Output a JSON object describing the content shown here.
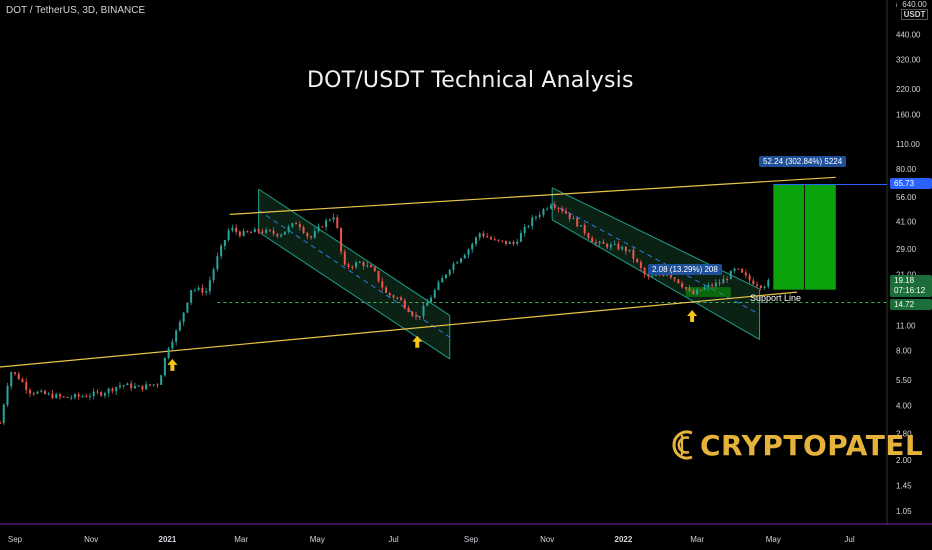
{
  "header": {
    "symbol_line": "DOT / TetherUS, 3D, BINANCE",
    "unit_top": "640.00",
    "unit": "USDT"
  },
  "title": "DOT/USDT Technical Analysis",
  "brand": {
    "name": "CRYPTOPATEL",
    "color": "#e6b33a"
  },
  "annotations": {
    "target_label": "52.24 (302.84%) 5224",
    "range_label": "2.08 (13.29%) 208",
    "support_label": "Support Line"
  },
  "price_labels": {
    "current": "19.18",
    "countdown": "07:16:12",
    "target": "65.73",
    "support": "14.72"
  },
  "colors": {
    "up": "#26a69a",
    "down": "#ef5350",
    "trend": "#e8c547",
    "channel": "#1f9e8c",
    "target": "#0ba30b",
    "arrow": "#f5c518",
    "label_blue": "#1e4f99",
    "support_dash": "#35b35a"
  },
  "chart_data": {
    "type": "candlestick",
    "symbol": "DOT/USDT",
    "timeframe": "3D",
    "exchange": "BINANCE",
    "y_scale": "log",
    "y_ticks": [
      640,
      440,
      320,
      220,
      160,
      110,
      80,
      56,
      41,
      29,
      21,
      14.72,
      11,
      8,
      5.5,
      4,
      2.8,
      2,
      1.45,
      1.05
    ],
    "y_tick_labels": [
      "640.00",
      "440.00",
      "320.00",
      "220.00",
      "160.00",
      "110.00",
      "80.00",
      "56.00",
      "41.00",
      "29.00",
      "21.00",
      "14.72",
      "11.00",
      "8.00",
      "5.50",
      "4.00",
      "2.80",
      "2.00",
      "1.45",
      "1.05"
    ],
    "x_ticks": [
      "Sep",
      "Nov",
      "2021",
      "Mar",
      "May",
      "Jul",
      "Sep",
      "Nov",
      "2022",
      "Mar",
      "May",
      "Jul"
    ],
    "x_range": [
      "2020-08-20",
      "2022-07-31"
    ],
    "price_path": [
      [
        "2020-08-20",
        3.2
      ],
      [
        "2020-08-28",
        6.2
      ],
      [
        "2020-09-05",
        5.6
      ],
      [
        "2020-09-12",
        4.8
      ],
      [
        "2020-09-25",
        4.6
      ],
      [
        "2020-10-10",
        4.4
      ],
      [
        "2020-10-25",
        4.5
      ],
      [
        "2020-11-10",
        4.7
      ],
      [
        "2020-11-25",
        5.2
      ],
      [
        "2020-12-10",
        5.0
      ],
      [
        "2020-12-25",
        5.3
      ],
      [
        "2021-01-01",
        8.2
      ],
      [
        "2021-01-10",
        10.8
      ],
      [
        "2021-01-20",
        17.5
      ],
      [
        "2021-02-01",
        17.0
      ],
      [
        "2021-02-10",
        26.0
      ],
      [
        "2021-02-20",
        38.0
      ],
      [
        "2021-03-01",
        35.0
      ],
      [
        "2021-03-15",
        36.5
      ],
      [
        "2021-04-01",
        35.0
      ],
      [
        "2021-04-15",
        41.0
      ],
      [
        "2021-04-25",
        33.0
      ],
      [
        "2021-05-05",
        39.5
      ],
      [
        "2021-05-15",
        45.0
      ],
      [
        "2021-05-22",
        23.0
      ],
      [
        "2021-06-05",
        24.5
      ],
      [
        "2021-06-15",
        22.0
      ],
      [
        "2021-06-25",
        16.5
      ],
      [
        "2021-07-05",
        15.5
      ],
      [
        "2021-07-20",
        12.0
      ],
      [
        "2021-07-30",
        15.5
      ],
      [
        "2021-08-15",
        23.0
      ],
      [
        "2021-08-30",
        29.0
      ],
      [
        "2021-09-08",
        35.5
      ],
      [
        "2021-09-20",
        32.0
      ],
      [
        "2021-10-05",
        31.0
      ],
      [
        "2021-10-20",
        42.0
      ],
      [
        "2021-11-04",
        52.0
      ],
      [
        "2021-11-12",
        48.5
      ],
      [
        "2021-11-25",
        40.0
      ],
      [
        "2021-12-10",
        31.0
      ],
      [
        "2021-12-25",
        30.0
      ],
      [
        "2022-01-05",
        28.5
      ],
      [
        "2022-01-20",
        20.0
      ],
      [
        "2022-02-05",
        21.5
      ],
      [
        "2022-02-15",
        19.0
      ],
      [
        "2022-02-25",
        16.2
      ],
      [
        "2022-03-05",
        17.5
      ],
      [
        "2022-03-20",
        19.0
      ],
      [
        "2022-04-01",
        22.5
      ],
      [
        "2022-04-12",
        19.5
      ],
      [
        "2022-04-22",
        18.2
      ],
      [
        "2022-04-28",
        19.18
      ]
    ],
    "last_price": 19.18,
    "support_level": 14.72,
    "target_level": 65.73,
    "target_move": {
      "value": 52.24,
      "percent": 302.84,
      "ticks": 5224
    },
    "measured_move": {
      "value": 2.08,
      "percent": 13.29,
      "ticks": 208
    },
    "trendlines": {
      "lower_support": [
        [
          "2020-08-20",
          6.5
        ],
        [
          "2022-05-20",
          16.8
        ]
      ],
      "upper_resistance": [
        [
          "2021-02-20",
          45.0
        ],
        [
          "2022-06-20",
          72.0
        ]
      ]
    },
    "channels": [
      {
        "upper": [
          [
            "2021-03-15",
            62.0
          ],
          [
            "2021-08-15",
            12.5
          ]
        ],
        "lower": [
          [
            "2021-03-15",
            36.0
          ],
          [
            "2021-08-15",
            7.2
          ]
        ]
      },
      {
        "upper": [
          [
            "2021-11-05",
            63.0
          ],
          [
            "2022-04-20",
            17.5
          ]
        ],
        "lower": [
          [
            "2021-11-05",
            42.0
          ],
          [
            "2022-04-20",
            9.2
          ]
        ]
      }
    ],
    "bounce_arrows": [
      "2021-01-05",
      "2021-07-20",
      "2022-02-25"
    ]
  }
}
